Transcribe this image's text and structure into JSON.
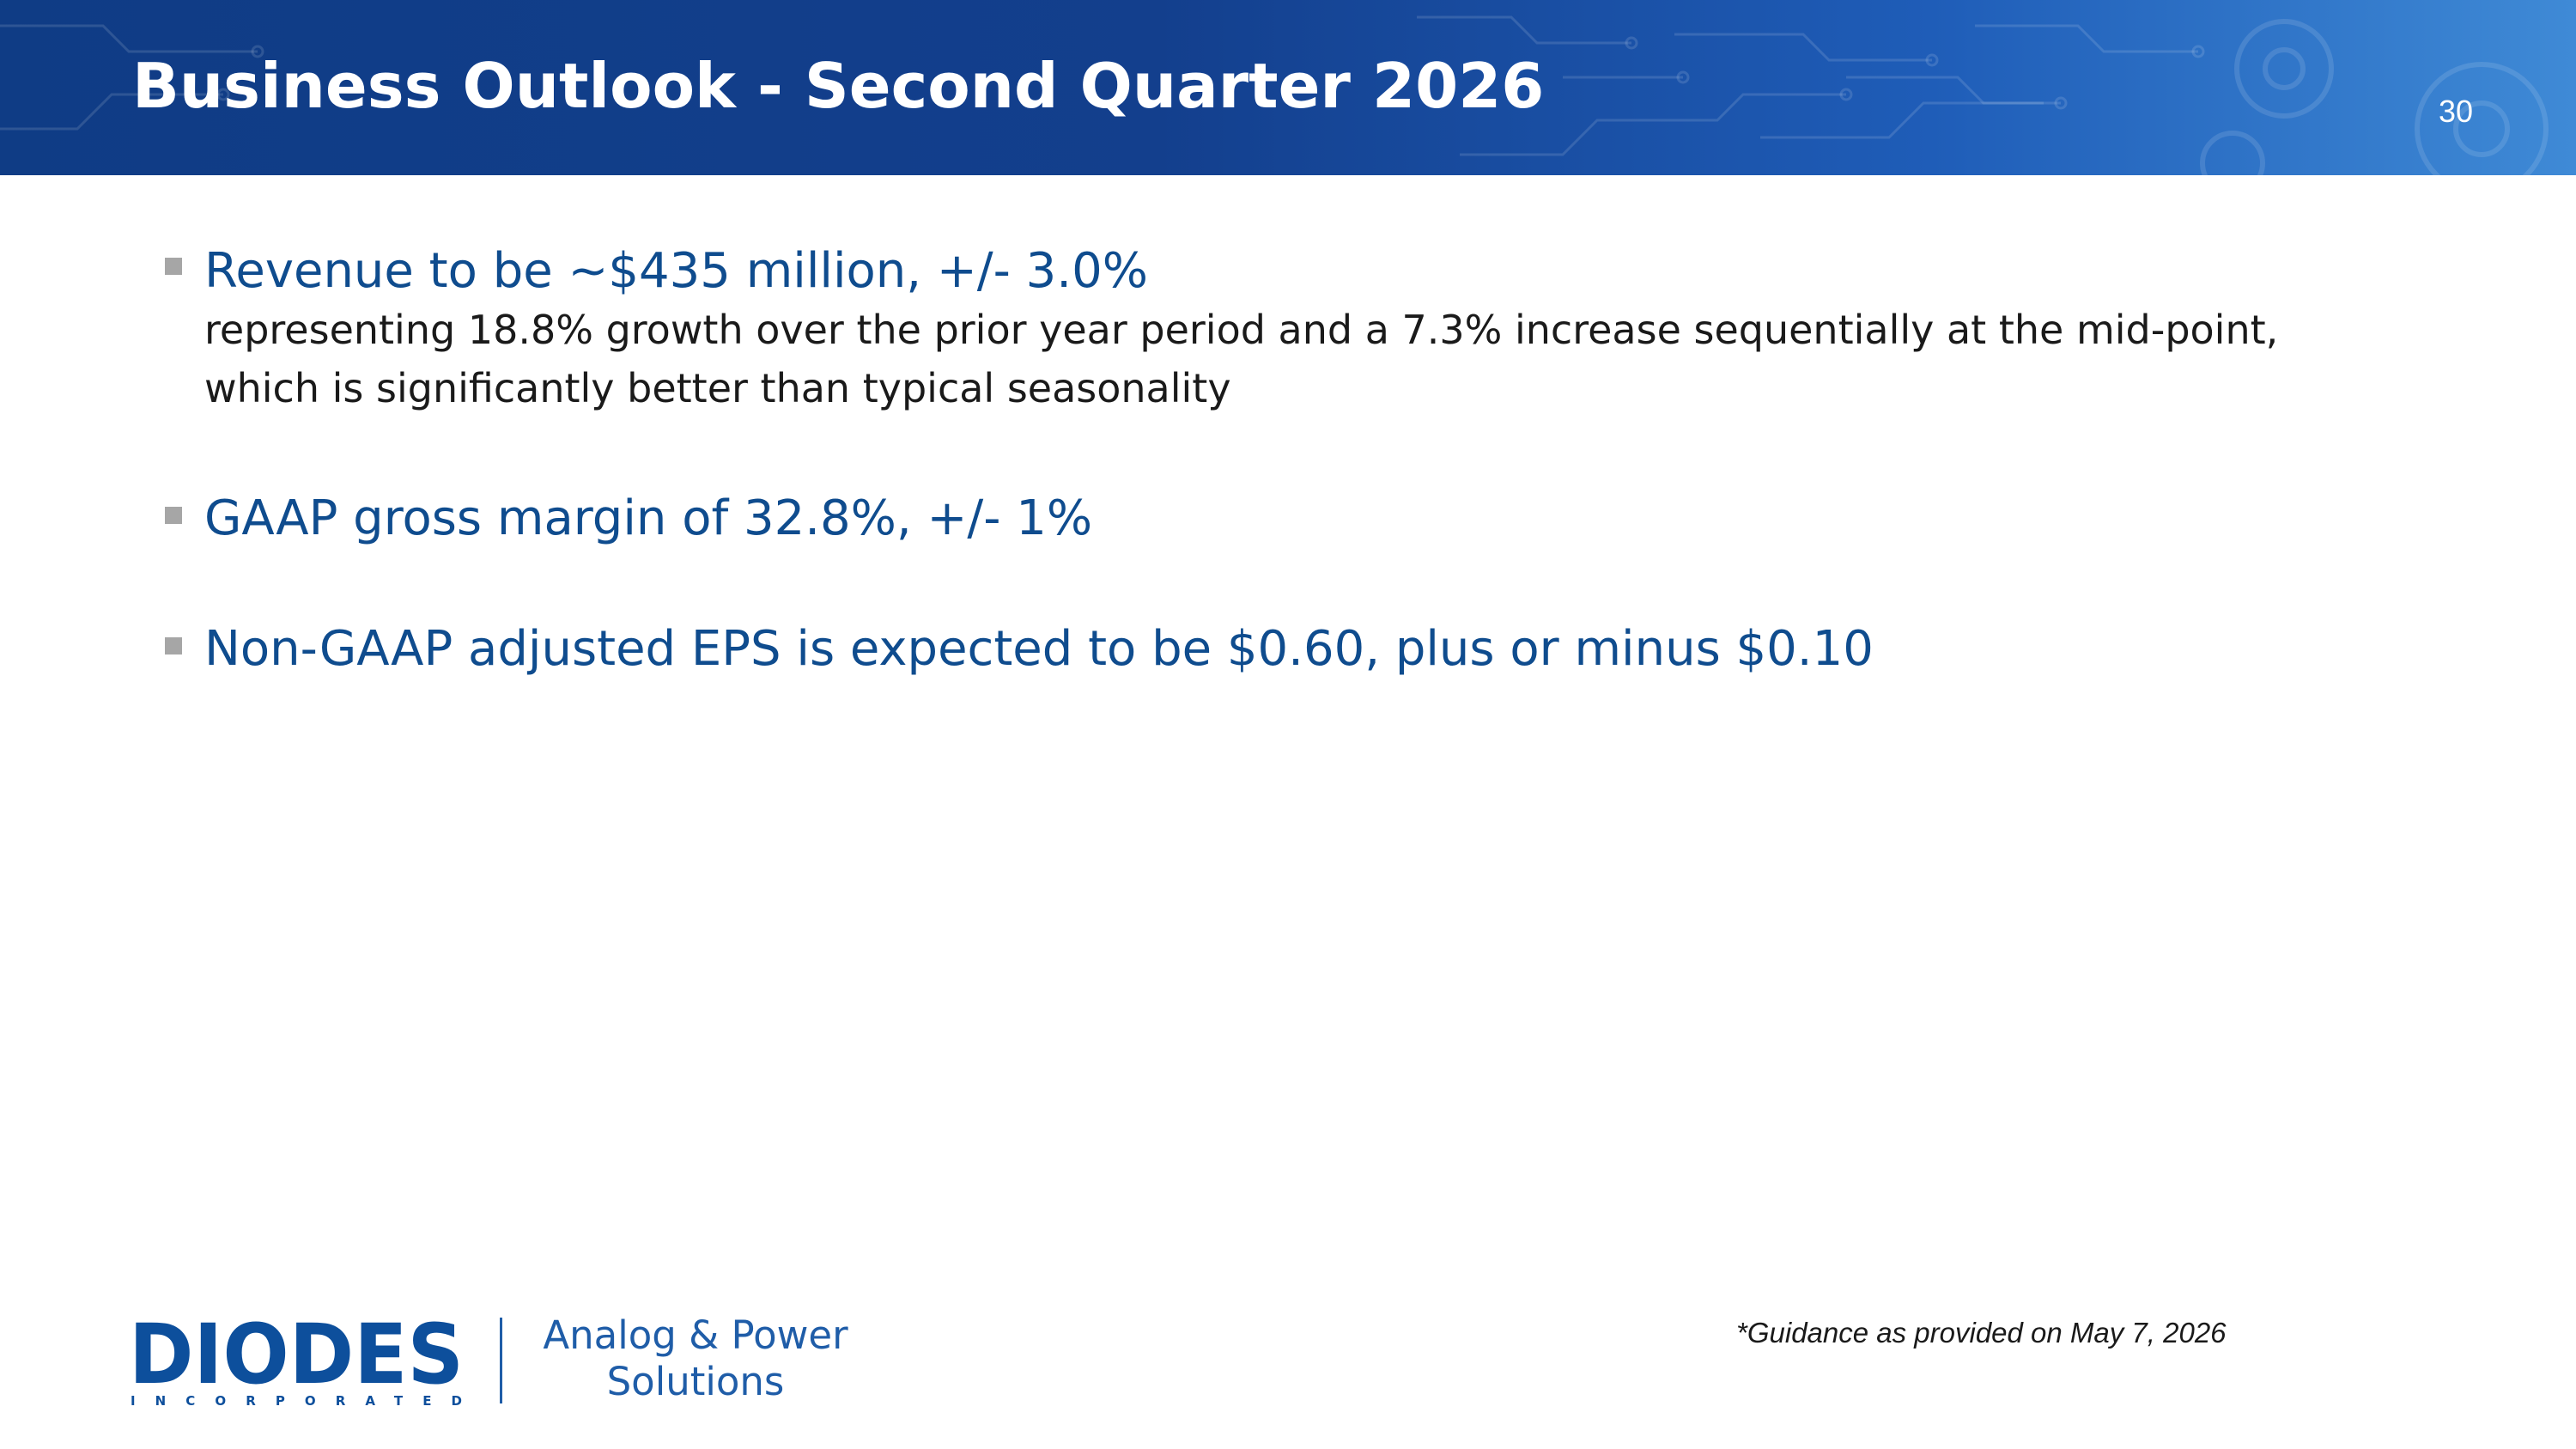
{
  "slide": {
    "title": "Business Outlook - Second Quarter 2026",
    "page_number": "30"
  },
  "bullets": [
    {
      "main": "Revenue to be ~$435 million, +/- 3.0%",
      "sub_line1": "representing 18.8% growth over the prior year period and a 7.3% increase sequentially at the mid-point,",
      "sub_line2": "which is significantly better than typical seasonality"
    },
    {
      "main": "GAAP gross margin of 32.8%, +/- 1%"
    },
    {
      "main": "Non-GAAP adjusted EPS is expected to be $0.60, plus or minus $0.10"
    }
  ],
  "footnote": "*Guidance as provided on May 7, 2026",
  "branding": {
    "logo_text": "DIODES",
    "logo_subtext": "INCORPORATED",
    "tagline_line1": "Analog & Power",
    "tagline_line2": "Solutions"
  },
  "colors": {
    "header_blue": "#133f8d",
    "bullet_text": "#0f4c8e",
    "logo_blue": "#0d4f9c",
    "tagline_blue": "#1f5da8"
  }
}
